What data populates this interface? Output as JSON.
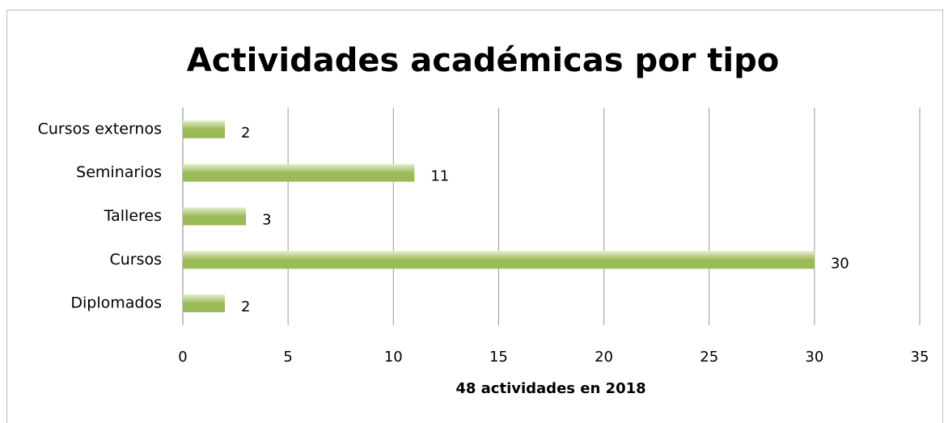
{
  "chart_data": {
    "type": "barh",
    "title": "Actividades académicas por tipo",
    "x_label": "48 actividades en 2018",
    "categories": [
      "Cursos externos",
      "Seminarios",
      "Talleres",
      "Cursos",
      "Diplomados"
    ],
    "values": [
      2,
      11,
      3,
      30,
      2
    ],
    "color": "#9bbb59",
    "xlim": [
      0,
      35
    ],
    "xticks": [
      0,
      5,
      10,
      15,
      20,
      25,
      30,
      35
    ],
    "grid": true
  }
}
